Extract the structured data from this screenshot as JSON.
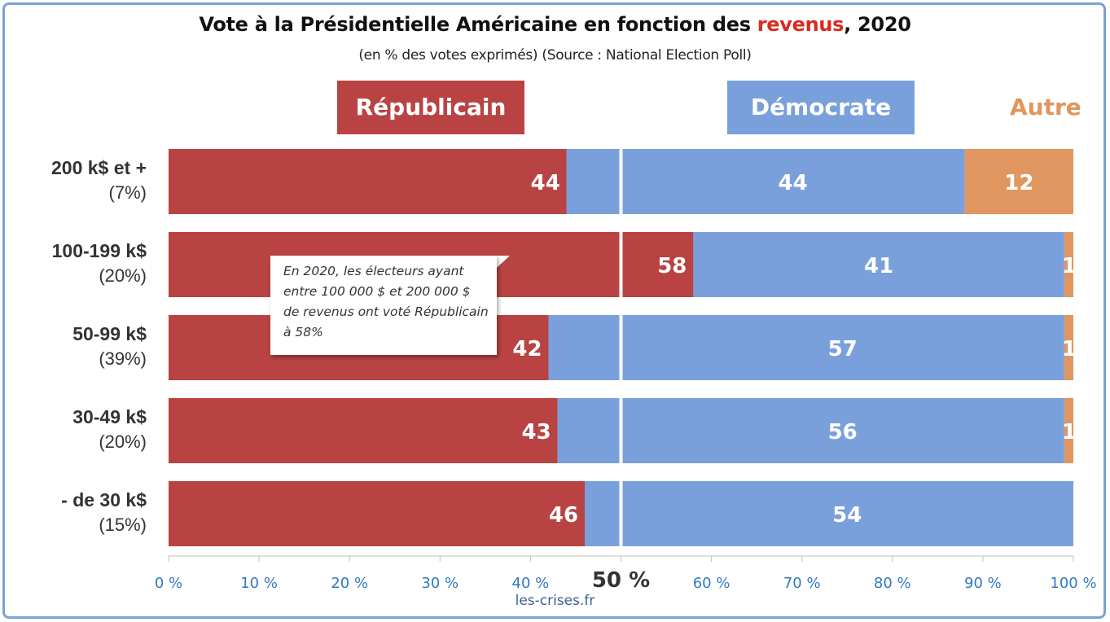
{
  "title": {
    "before": "Vote à la Présidentielle Américaine en fonction des ",
    "highlight": "revenus",
    "after": ", 2020"
  },
  "subtitle": "(en % des votes exprimés) (Source : National Election Poll)",
  "legend": {
    "republicain": "Républicain",
    "democrate": "Démocrate",
    "autre": "Autre"
  },
  "callout": "En 2020, les électeurs ayant entre 100 000 $ et 200 000 $ de revenus ont voté Républicain à 58%",
  "footer": "les-crises.fr",
  "colors": {
    "republicain": "#b94343",
    "democrate": "#7aa0dc",
    "autre": "#e0965e",
    "axis_labels": "#2f7ac0",
    "frame": "#7aa3d6"
  },
  "chart_data": {
    "type": "bar",
    "orientation": "horizontal-stacked-100",
    "categories": [
      {
        "label": "200 k$ et +",
        "share": "(7%)"
      },
      {
        "label": "100-199 k$",
        "share": "(20%)"
      },
      {
        "label": "50-99 k$",
        "share": "(39%)"
      },
      {
        "label": "30-49 k$",
        "share": "(20%)"
      },
      {
        "label": "- de 30 k$",
        "share": "(15%)"
      }
    ],
    "series": [
      {
        "name": "Républicain",
        "values": [
          44,
          58,
          42,
          43,
          46
        ]
      },
      {
        "name": "Démocrate",
        "values": [
          44,
          41,
          57,
          56,
          54
        ]
      },
      {
        "name": "Autre",
        "values": [
          12,
          1,
          1,
          1,
          0
        ]
      }
    ],
    "data_labels": [
      [
        "44",
        "44",
        "12"
      ],
      [
        "58",
        "41",
        "1"
      ],
      [
        "42",
        "57",
        "1"
      ],
      [
        "43",
        "56",
        "1"
      ],
      [
        "46",
        "54",
        ""
      ]
    ],
    "xlim": [
      0,
      100
    ],
    "x_ticks": [
      "0 %",
      "10 %",
      "20 %",
      "30 %",
      "40 %",
      "50 %",
      "60 %",
      "70 %",
      "80 %",
      "90 %",
      "100 %"
    ],
    "midline": 50,
    "grid": false
  }
}
